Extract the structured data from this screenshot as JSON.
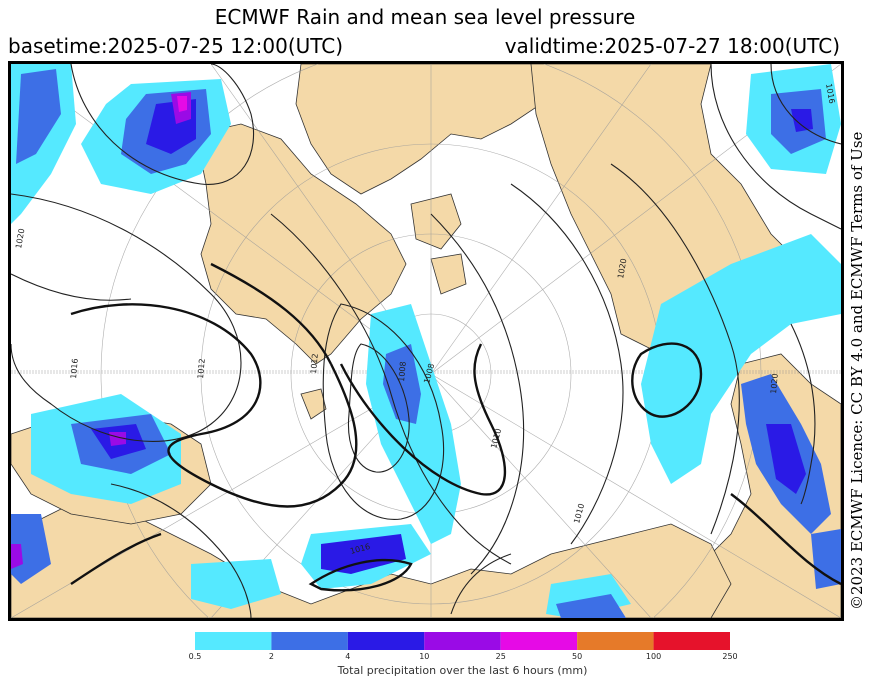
{
  "title": "ECMWF Rain and mean sea level pressure",
  "basetime": "basetime:2025-07-25 12:00(UTC)",
  "validtime": "validtime:2025-07-27 18:00(UTC)",
  "licence": "©2023 ECMWF Licence: CC BY 4.0 and ECMWF Terms of Use",
  "map": {
    "land_color": "#f4d9a8",
    "ocean_color": "#ffffff",
    "isobar_labels": [
      "1020",
      "1020",
      "1016",
      "1012",
      "1012",
      "1008",
      "1008",
      "1010",
      "1010",
      "1020",
      "1016",
      "1016"
    ],
    "contour_color": "#222222"
  },
  "legend": {
    "caption": "Total precipitation over the last 6 hours (mm)",
    "ticks": [
      "0.5",
      "2",
      "4",
      "10",
      "25",
      "50",
      "100",
      "250"
    ],
    "colors": [
      "#55e9ff",
      "#3d6fe6",
      "#2a1ae6",
      "#9a0be6",
      "#e60ae6",
      "#e67a29",
      "#e6122b"
    ]
  }
}
